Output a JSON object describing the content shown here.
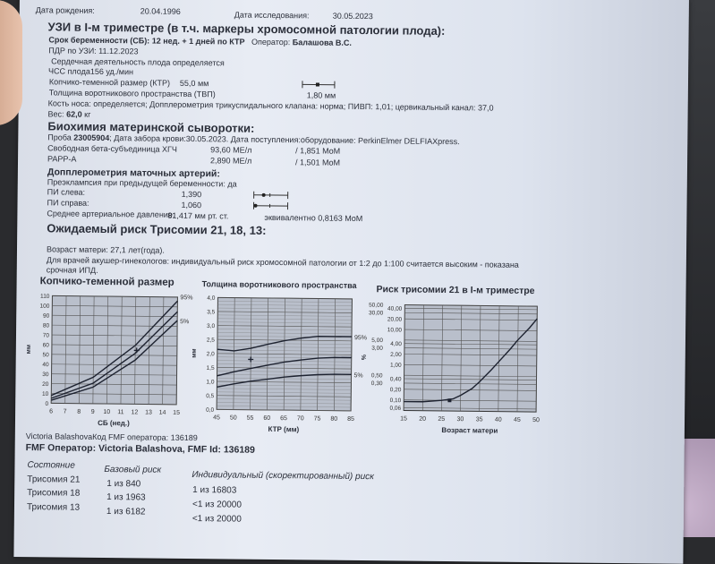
{
  "patient": {
    "birth_label": "Дата рождения:",
    "birth_date": "20.04.1996",
    "exam_label": "Дата исследования:",
    "exam_date": "30.05.2023"
  },
  "ultrasound": {
    "title": "УЗИ в I-м триместре (в т.ч. маркеры хромосомной патологии плода):",
    "term_label": "Срок беременности (СБ):",
    "term_value": "12 нед. + 1 дней по КТР",
    "operator_label": "Оператор:",
    "operator_value": "Балашова В.С.",
    "edd": "ПДР по УЗИ: 11.12.2023",
    "heart": "Сердечная деятельность плода  определяется",
    "fhr": "ЧСС плода156 уд./мин",
    "crl_label": "Копчико-теменной размер (КТР)",
    "crl_value": "55,0 мм",
    "nt_label": "Толщина воротникового пространства (ТВП)",
    "nt_value": "1,80 мм",
    "nasal": "Кость носа: определяется;   Допплерометрия трикуспидального клапана: норма;   ПИВП: 1,01;  цервикальный канал: 37,0",
    "weight_label": "Вес:",
    "weight_value": "62,0",
    "weight_unit": "кг"
  },
  "biochem": {
    "title": "Биохимия материнской сыворотки:",
    "sample_label": "Проба",
    "sample_id": "23005904",
    "sample_rest": "; Дата забора крови:30.05.2023. Дата поступления:оборудование: PerkinElmer DELFIAXpress.",
    "rows": [
      {
        "name": "Свободная бета-субъединица ХГЧ",
        "value": "93,60 МЕ/л",
        "mom": "/  1,851 MoM"
      },
      {
        "name": "PAPP-A",
        "value": "2,890 МЕ/л",
        "mom": "/  1,501 MoM"
      }
    ]
  },
  "doppler": {
    "title": "Допплерометрия маточных артерий:",
    "preeclampsia": "Преэклампсия при предыдущей беременности:  да",
    "left_label": "ПИ слева:",
    "left_value": "1,390",
    "right_label": "ПИ справа:",
    "right_value": "1,060",
    "map_label": "Среднее артериальное давление:",
    "map_value": "81,417  мм рт. ст.",
    "map_eq": "эквивалентно   0,8163 MoM"
  },
  "risk": {
    "title": "Ожидаемый риск Трисомии 21, 18, 13:",
    "age": "Возраст матери: 27,1 лет(года).",
    "note1": "Для врачей акушер-гинекологов: индивидуальный риск хромосомной патологии от 1:2 до 1:100 считается высоким - показана",
    "note2": "срочная ИПД."
  },
  "chart_data": [
    {
      "type": "line",
      "title": "Копчико-теменной размер",
      "xlabel": "СБ (нед.)",
      "ylabel": "мм",
      "xlim": [
        6,
        15
      ],
      "ylim": [
        0,
        110
      ],
      "xticks": [
        "6",
        "7",
        "8",
        "9",
        "10",
        "11",
        "12",
        "13",
        "14",
        "15"
      ],
      "yticks": [
        "0",
        "10",
        "20",
        "30",
        "40",
        "50",
        "60",
        "70",
        "80",
        "90",
        "100",
        "110"
      ],
      "x": [
        6,
        9,
        12,
        15
      ],
      "series": [
        {
          "name": "95%",
          "values": [
            8,
            27,
            60,
            106
          ]
        },
        {
          "name": "",
          "values": [
            5,
            21,
            52,
            95
          ]
        },
        {
          "name": "5%",
          "values": [
            3,
            17,
            45,
            86
          ]
        }
      ],
      "point": {
        "x": 12.1,
        "y": 55
      },
      "grid": true
    },
    {
      "type": "line",
      "title": "Толщина воротникового пространства",
      "xlabel": "КТР (мм)",
      "ylabel": "мм",
      "xlim": [
        45,
        85
      ],
      "ylim": [
        0,
        4
      ],
      "xticks": [
        "45",
        "50",
        "55",
        "60",
        "65",
        "70",
        "75",
        "80",
        "85"
      ],
      "yticks": [
        "0,0",
        "0,5",
        "1,0",
        "1,5",
        "2,0",
        "2,5",
        "3,0",
        "3,5",
        "4,0"
      ],
      "x": [
        45,
        50,
        55,
        60,
        65,
        70,
        75,
        80,
        85
      ],
      "series": [
        {
          "name": "95%",
          "values": [
            2.15,
            2.1,
            2.2,
            2.35,
            2.48,
            2.58,
            2.65,
            2.65,
            2.65
          ]
        },
        {
          "name": "",
          "values": [
            1.2,
            1.35,
            1.48,
            1.6,
            1.72,
            1.8,
            1.87,
            1.9,
            1.9
          ]
        },
        {
          "name": "5%",
          "values": [
            0.8,
            0.92,
            1.02,
            1.1,
            1.18,
            1.24,
            1.28,
            1.3,
            1.3
          ]
        }
      ],
      "point": {
        "x": 55,
        "y": 1.8
      },
      "grid": true
    },
    {
      "type": "line",
      "title": "Риск трисомии 21 в I-м триместре",
      "xlabel": "Возраст матери",
      "ylabel": "%",
      "yscale": "log",
      "xlim": [
        15,
        50
      ],
      "ylim": [
        0.05,
        50
      ],
      "xticks": [
        "15",
        "20",
        "25",
        "30",
        "35",
        "40",
        "45",
        "50"
      ],
      "yticks": [
        "0,06",
        "0,10",
        "0,20",
        "0,30",
        "0,40",
        "0,50",
        "1,00",
        "2,00",
        "3,00",
        "4,00",
        "5,00",
        "10,00",
        "20,00",
        "30,00",
        "40,00",
        "50,00"
      ],
      "x": [
        15,
        20,
        25,
        28,
        30,
        33,
        35,
        38,
        40,
        43,
        45,
        48,
        50
      ],
      "series": [
        {
          "name": "",
          "values": [
            0.09,
            0.09,
            0.1,
            0.11,
            0.14,
            0.22,
            0.35,
            0.75,
            1.3,
            3.0,
            5.5,
            12,
            22
          ]
        }
      ],
      "point": {
        "x": 27.1,
        "y": 0.1
      },
      "grid": true
    }
  ],
  "fmf": {
    "code_line": "Victoria BalashovaКод FMF оператора: 136189",
    "operator_line": "FMF Оператор: Victoria Balashova, FMF Id: 136189"
  },
  "risk_table": {
    "headers": [
      "Состояние",
      "Базовый риск",
      "Индивидуальный (скоректированный) риск"
    ],
    "rows": [
      [
        "Трисомия 21",
        "1 из 840",
        "1 из 16803"
      ],
      [
        "Трисомия 18",
        "1 из 1963",
        "<1 из 20000"
      ],
      [
        "Трисомия 13",
        "1 из 6182",
        "<1 из 20000"
      ]
    ]
  }
}
